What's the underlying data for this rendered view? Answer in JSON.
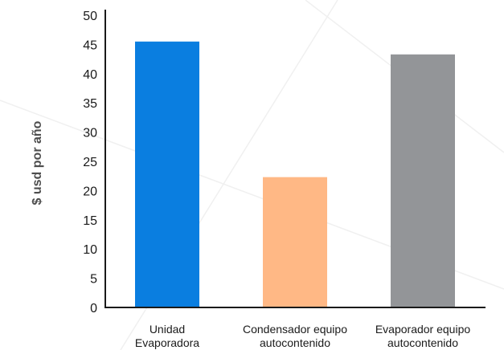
{
  "chart_data": {
    "type": "bar",
    "categories": [
      [
        "Unidad",
        "Evaporadora"
      ],
      [
        "Condensador equipo",
        "autocontenido"
      ],
      [
        "Evaporador equipo",
        "autocontenido"
      ]
    ],
    "values": [
      45.5,
      22.3,
      43.3
    ],
    "colors": [
      "#0a7ee0",
      "#ffb885",
      "#939598"
    ],
    "title": "",
    "xlabel": "",
    "ylabel": "$ usd por año",
    "ylim": [
      0,
      50
    ],
    "yticks": [
      0,
      5,
      10,
      15,
      20,
      25,
      30,
      35,
      40,
      45,
      50
    ],
    "grid": false,
    "legend": "none"
  }
}
